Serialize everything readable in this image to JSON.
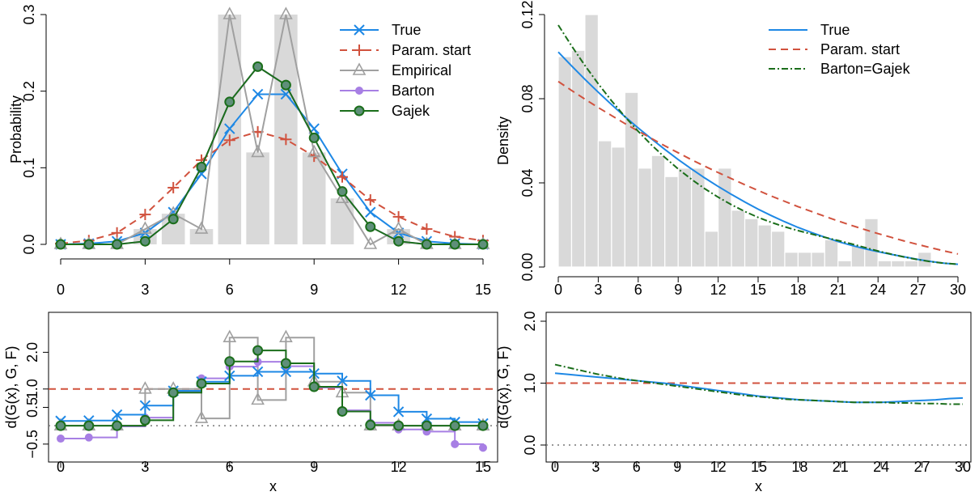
{
  "colors": {
    "true": "#1E88E5",
    "param": "#D1523E",
    "empirical": "#A0A0A0",
    "barton": "#A77FE4",
    "gajek": "#1B6E1B",
    "gajek_fill": "#5F8F7A",
    "hist": "#D9D9D9",
    "ref": "#777777"
  },
  "chart_data": [
    {
      "id": "top-left",
      "type": "bar+line",
      "ylabel": "Probability",
      "xlim": [
        0,
        15
      ],
      "ylim": [
        0,
        0.3
      ],
      "xticks": [
        "0",
        "3",
        "6",
        "9",
        "12",
        "15"
      ],
      "yticks": [
        "0.0",
        "0.1",
        "0.2",
        "0.3"
      ],
      "legend_position": "top-right",
      "bars": {
        "x": [
          0,
          1,
          2,
          3,
          4,
          5,
          6,
          7,
          8,
          9,
          10,
          11,
          12,
          13,
          14,
          15
        ],
        "values": [
          0,
          0,
          0,
          0.02,
          0.04,
          0.02,
          0.3,
          0.12,
          0.3,
          0.12,
          0.06,
          0,
          0.02,
          0,
          0,
          0
        ]
      },
      "series": [
        {
          "name": "True",
          "key": "true",
          "marker": "x",
          "dash": "",
          "x": [
            0,
            1,
            2,
            3,
            4,
            5,
            6,
            7,
            8,
            9,
            10,
            11,
            12,
            13,
            14,
            15
          ],
          "y": [
            0.0,
            0.001,
            0.004,
            0.015,
            0.042,
            0.092,
            0.151,
            0.196,
            0.196,
            0.151,
            0.092,
            0.042,
            0.015,
            0.004,
            0.001,
            0.0
          ]
        },
        {
          "name": "Param. start",
          "key": "param",
          "marker": "plus",
          "dash": "9,6",
          "x": [
            0,
            1,
            2,
            3,
            4,
            5,
            6,
            7,
            8,
            9,
            10,
            11,
            12,
            13,
            14,
            15
          ],
          "y": [
            0.001,
            0.005,
            0.015,
            0.039,
            0.074,
            0.11,
            0.136,
            0.147,
            0.137,
            0.115,
            0.088,
            0.058,
            0.036,
            0.02,
            0.01,
            0.005
          ]
        },
        {
          "name": "Empirical",
          "key": "empirical",
          "marker": "triangle",
          "dash": "",
          "x": [
            0,
            1,
            2,
            3,
            4,
            5,
            6,
            7,
            8,
            9,
            10,
            11,
            12,
            13,
            14,
            15
          ],
          "y": [
            0,
            0,
            0,
            0.02,
            0.04,
            0.02,
            0.3,
            0.12,
            0.3,
            0.12,
            0.06,
            0,
            0.02,
            0,
            0,
            0
          ]
        },
        {
          "name": "Barton",
          "key": "barton",
          "marker": "dot",
          "dash": "",
          "x": [
            0,
            1,
            2,
            3,
            4,
            5,
            6,
            7,
            8,
            9,
            10,
            11,
            12,
            13,
            14,
            15
          ],
          "y": [
            0.0,
            0.0,
            0.0,
            0.004,
            0.033,
            0.101,
            0.186,
            0.232,
            0.208,
            0.139,
            0.069,
            0.023,
            0.004,
            0.0,
            0.0,
            0.0
          ]
        },
        {
          "name": "Gajek",
          "key": "gajek",
          "marker": "circle",
          "dash": "",
          "x": [
            0,
            1,
            2,
            3,
            4,
            5,
            6,
            7,
            8,
            9,
            10,
            11,
            12,
            13,
            14,
            15
          ],
          "y": [
            0.0,
            0.0,
            0.0,
            0.004,
            0.033,
            0.101,
            0.186,
            0.232,
            0.208,
            0.139,
            0.069,
            0.023,
            0.004,
            0.0,
            0.0,
            0.0
          ]
        }
      ]
    },
    {
      "id": "top-right",
      "type": "histogram+line",
      "ylabel": "Density",
      "xlim": [
        0,
        30
      ],
      "ylim": [
        0,
        0.12
      ],
      "xticks": [
        "0",
        "3",
        "6",
        "9",
        "12",
        "15",
        "18",
        "21",
        "24",
        "27",
        "30"
      ],
      "yticks": [
        "0.00",
        "0.04",
        "0.08",
        "0.12"
      ],
      "legend_position": "top-right",
      "bins": {
        "width": 1,
        "start": 0,
        "values": [
          0.1,
          0.103,
          0.12,
          0.06,
          0.057,
          0.083,
          0.047,
          0.053,
          0.043,
          0.047,
          0.047,
          0.017,
          0.047,
          0.027,
          0.023,
          0.02,
          0.017,
          0.007,
          0.007,
          0.007,
          0.013,
          0.003,
          0.01,
          0.023,
          0.003,
          0.003,
          0.003,
          0.007,
          0.0,
          0.0
        ]
      },
      "series": [
        {
          "name": "True",
          "key": "true",
          "dash": "",
          "x": [
            0,
            1,
            2,
            3,
            4,
            5,
            6,
            7,
            8,
            9,
            10,
            11,
            12,
            13,
            14,
            15,
            16,
            17,
            18,
            19,
            20,
            21,
            22,
            23,
            24,
            25,
            26,
            27,
            28,
            29,
            30
          ],
          "y": [
            0.1022,
            0.0956,
            0.0892,
            0.0831,
            0.0772,
            0.0715,
            0.0661,
            0.0609,
            0.0559,
            0.0511,
            0.0466,
            0.0423,
            0.0383,
            0.0345,
            0.0309,
            0.0275,
            0.0244,
            0.0215,
            0.0188,
            0.0164,
            0.0142,
            0.0121,
            0.0103,
            0.0087,
            0.0073,
            0.006,
            0.0048,
            0.0036,
            0.0026,
            0.0018,
            0.0013
          ]
        },
        {
          "name": "Param. start",
          "key": "param",
          "dash": "9,6",
          "x": [
            0,
            1,
            2,
            3,
            4,
            5,
            6,
            7,
            8,
            9,
            10,
            11,
            12,
            13,
            14,
            15,
            16,
            17,
            18,
            19,
            20,
            21,
            22,
            23,
            24,
            25,
            26,
            27,
            28,
            29,
            30
          ],
          "y": [
            0.0882,
            0.0839,
            0.0798,
            0.0758,
            0.072,
            0.0682,
            0.0646,
            0.0611,
            0.0576,
            0.0543,
            0.051,
            0.0479,
            0.0449,
            0.042,
            0.0391,
            0.0364,
            0.0337,
            0.0312,
            0.0287,
            0.0264,
            0.0241,
            0.0219,
            0.0198,
            0.0178,
            0.0159,
            0.0141,
            0.0123,
            0.0107,
            0.0091,
            0.0076,
            0.0062
          ]
        },
        {
          "name": "Barton=Gajek",
          "key": "gajek",
          "dash": "8,3,2,3",
          "x": [
            0,
            1,
            2,
            3,
            4,
            5,
            6,
            7,
            8,
            9,
            10,
            11,
            12,
            13,
            14,
            15,
            16,
            17,
            18,
            19,
            20,
            21,
            22,
            23,
            24,
            25,
            26,
            27,
            28,
            29,
            30
          ],
          "y": [
            0.115,
            0.1051,
            0.0958,
            0.0871,
            0.079,
            0.0715,
            0.0645,
            0.058,
            0.0521,
            0.0466,
            0.0417,
            0.0372,
            0.0332,
            0.0296,
            0.0264,
            0.0236,
            0.0212,
            0.0191,
            0.0173,
            0.0157,
            0.0141,
            0.0126,
            0.011,
            0.0093,
            0.0076,
            0.0061,
            0.0047,
            0.0035,
            0.0025,
            0.0018,
            0.0013
          ]
        }
      ]
    },
    {
      "id": "bottom-left",
      "type": "step",
      "ylabel": "d(G(x), G, F)",
      "xlabel": "x",
      "xlim": [
        0,
        15
      ],
      "ylim": [
        -0.9,
        3.0
      ],
      "xticks": [
        "0",
        "3",
        "6",
        "9",
        "12",
        "15"
      ],
      "yticks": [
        "−0.5",
        "0.5",
        "1.0",
        "2.0"
      ],
      "ytick_values": [
        -0.5,
        0.5,
        1.0,
        2.0
      ],
      "reference_lines": [
        {
          "key": "param",
          "y": 1.0,
          "dash": "9,6"
        },
        {
          "key": "ref",
          "y": 0.0,
          "dash": "2,5"
        }
      ],
      "series": [
        {
          "name": "Empirical",
          "key": "empirical",
          "marker": "triangle",
          "x": [
            0,
            1,
            2,
            3,
            4,
            5,
            6,
            7,
            8,
            9,
            10,
            11,
            12,
            13,
            14,
            15
          ],
          "y": [
            0.0,
            0.0,
            0.0,
            1.0,
            1.0,
            0.2,
            2.4,
            0.7,
            2.4,
            1.2,
            0.9,
            0.0,
            0.0,
            0.0,
            0.0,
            0.0
          ]
        },
        {
          "name": "Barton",
          "key": "barton",
          "marker": "dot",
          "x": [
            0,
            1,
            2,
            3,
            4,
            5,
            6,
            7,
            8,
            9,
            10,
            11,
            12,
            13,
            14,
            15
          ],
          "y": [
            -0.35,
            -0.32,
            -0.02,
            0.22,
            0.91,
            1.29,
            1.61,
            1.74,
            1.62,
            1.04,
            0.42,
            0.08,
            -0.1,
            -0.16,
            -0.5,
            -0.6
          ]
        },
        {
          "name": "True",
          "key": "true",
          "marker": "x",
          "x": [
            0,
            1,
            2,
            3,
            4,
            5,
            6,
            7,
            8,
            9,
            10,
            11,
            12,
            13,
            14,
            15
          ],
          "y": [
            0.13,
            0.14,
            0.3,
            0.55,
            0.95,
            1.2,
            1.36,
            1.47,
            1.47,
            1.42,
            1.22,
            0.83,
            0.38,
            0.19,
            0.1,
            0.06
          ]
        },
        {
          "name": "Gajek",
          "key": "gajek",
          "marker": "circle",
          "x": [
            0,
            1,
            2,
            3,
            4,
            5,
            6,
            7,
            8,
            9,
            10,
            11,
            12,
            13,
            14,
            15
          ],
          "y": [
            0.0,
            0.0,
            0.0,
            0.15,
            0.9,
            1.15,
            1.75,
            2.05,
            1.7,
            1.06,
            0.39,
            0.02,
            0.0,
            0.0,
            0.0,
            0.0
          ]
        }
      ]
    },
    {
      "id": "bottom-right",
      "type": "line",
      "ylabel": "d(G(x), G, F)",
      "xlabel": "x",
      "xlim": [
        0,
        30
      ],
      "ylim": [
        0,
        2.0
      ],
      "xticks": [
        "0",
        "3",
        "6",
        "9",
        "12",
        "15",
        "18",
        "21",
        "24",
        "27",
        "30"
      ],
      "yticks": [
        "0.0",
        "1.0",
        "2.0"
      ],
      "reference_lines": [
        {
          "key": "param",
          "y": 1.0,
          "dash": "9,6"
        },
        {
          "key": "ref",
          "y": 0.0,
          "dash": "2,5"
        }
      ],
      "series": [
        {
          "name": "True",
          "key": "true",
          "dash": "",
          "x": [
            0,
            1,
            2,
            3,
            4,
            5,
            6,
            7,
            8,
            9,
            10,
            11,
            12,
            13,
            14,
            15,
            16,
            17,
            18,
            19,
            20,
            21,
            22,
            23,
            24,
            25,
            26,
            27,
            28,
            29,
            30
          ],
          "y": [
            1.16,
            1.14,
            1.12,
            1.1,
            1.08,
            1.06,
            1.04,
            1.02,
            1.0,
            0.97,
            0.94,
            0.91,
            0.88,
            0.85,
            0.82,
            0.79,
            0.77,
            0.75,
            0.73,
            0.72,
            0.71,
            0.7,
            0.69,
            0.69,
            0.69,
            0.7,
            0.71,
            0.72,
            0.73,
            0.75,
            0.76
          ]
        },
        {
          "name": "Barton=Gajek",
          "key": "gajek",
          "dash": "8,3,2,3",
          "x": [
            0,
            1,
            2,
            3,
            4,
            5,
            6,
            7,
            8,
            9,
            10,
            11,
            12,
            13,
            14,
            15,
            16,
            17,
            18,
            19,
            20,
            21,
            22,
            23,
            24,
            25,
            26,
            27,
            28,
            29,
            30
          ],
          "y": [
            1.3,
            1.25,
            1.2,
            1.15,
            1.11,
            1.07,
            1.04,
            1.01,
            0.98,
            0.95,
            0.92,
            0.89,
            0.86,
            0.83,
            0.8,
            0.78,
            0.76,
            0.74,
            0.73,
            0.72,
            0.71,
            0.7,
            0.69,
            0.69,
            0.69,
            0.68,
            0.68,
            0.67,
            0.67,
            0.66,
            0.66
          ]
        }
      ]
    }
  ]
}
